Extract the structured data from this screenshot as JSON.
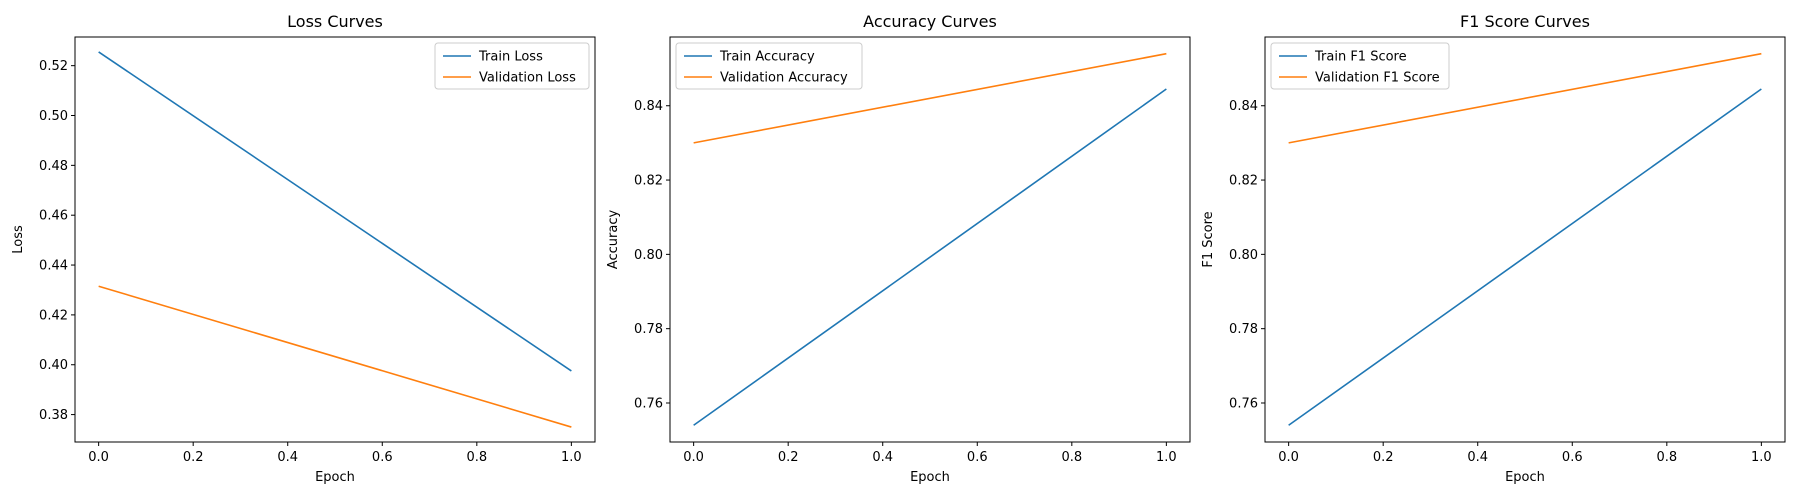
{
  "colors": {
    "train": "#1f77b4",
    "validation": "#ff7f0e"
  },
  "chart_data": [
    {
      "type": "line",
      "title": "Loss Curves",
      "xlabel": "Epoch",
      "ylabel": "Loss",
      "x": [
        0,
        1
      ],
      "xlim": [
        -0.05,
        1.05
      ],
      "ylim": [
        0.369,
        0.5315
      ],
      "xticks": [
        "0.0",
        "0.2",
        "0.4",
        "0.6",
        "0.8",
        "1.0"
      ],
      "yticks": [
        "0.38",
        "0.40",
        "0.42",
        "0.44",
        "0.46",
        "0.48",
        "0.50",
        "0.52"
      ],
      "legend": "top-right",
      "grid": false,
      "series": [
        {
          "name": "Train Loss",
          "values": [
            0.5255,
            0.3975
          ]
        },
        {
          "name": "Validation Loss",
          "values": [
            0.4315,
            0.375
          ]
        }
      ]
    },
    {
      "type": "line",
      "title": "Accuracy Curves",
      "xlabel": "Epoch",
      "ylabel": "Accuracy",
      "x": [
        0,
        1
      ],
      "xlim": [
        -0.05,
        1.05
      ],
      "ylim": [
        0.7495,
        0.8585
      ],
      "xticks": [
        "0.0",
        "0.2",
        "0.4",
        "0.6",
        "0.8",
        "1.0"
      ],
      "yticks": [
        "0.76",
        "0.78",
        "0.80",
        "0.82",
        "0.84"
      ],
      "legend": "top-left",
      "grid": false,
      "series": [
        {
          "name": "Train Accuracy",
          "values": [
            0.754,
            0.8445
          ]
        },
        {
          "name": "Validation Accuracy",
          "values": [
            0.83,
            0.854
          ]
        }
      ]
    },
    {
      "type": "line",
      "title": "F1 Score Curves",
      "xlabel": "Epoch",
      "ylabel": "F1 Score",
      "x": [
        0,
        1
      ],
      "xlim": [
        -0.05,
        1.05
      ],
      "ylim": [
        0.7495,
        0.8585
      ],
      "xticks": [
        "0.0",
        "0.2",
        "0.4",
        "0.6",
        "0.8",
        "1.0"
      ],
      "yticks": [
        "0.76",
        "0.78",
        "0.80",
        "0.82",
        "0.84"
      ],
      "legend": "top-left",
      "grid": false,
      "series": [
        {
          "name": "Train F1 Score",
          "values": [
            0.754,
            0.8445
          ]
        },
        {
          "name": "Validation F1 Score",
          "values": [
            0.83,
            0.854
          ]
        }
      ]
    }
  ]
}
